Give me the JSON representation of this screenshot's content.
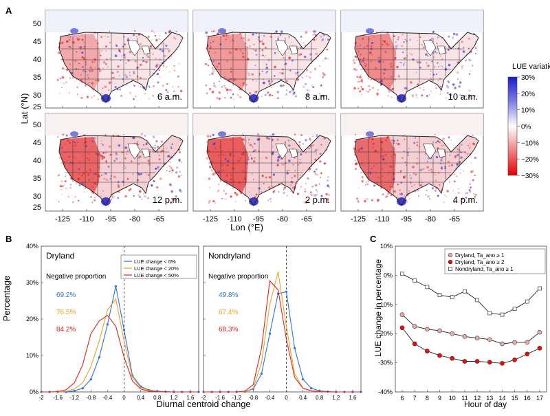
{
  "panels": {
    "a": "A",
    "b": "B",
    "c": "C"
  },
  "colors": {
    "neg": "#e0221c",
    "pos": "#2c2ccf",
    "blue": "#2f6fe0",
    "orange": "#f0a020",
    "red": "#e0221c",
    "circle_fill": "#e8aab0",
    "dot_fill": "#d01818"
  },
  "chart_data": [
    {
      "id": "A",
      "type": "map",
      "ylabel": "Lat (°N)",
      "xlabel": "Lon (°E)",
      "x_ticks": [
        "-125",
        "-110",
        "-95",
        "-80",
        "-65"
      ],
      "y_ticks": [
        "50",
        "45",
        "40",
        "35",
        "30",
        "25"
      ],
      "panels": [
        "6 a.m.",
        "8 a.m.",
        "10 a.m.",
        "12 p.m.",
        "2 p.m.",
        "4 p.m."
      ],
      "colorbar": {
        "title": "LUE variations",
        "ticks": [
          "30%",
          "20%",
          "10%",
          "0%",
          "−10%",
          "−20%",
          "−30%"
        ],
        "min": -30,
        "max": 30
      }
    },
    {
      "id": "B",
      "type": "line",
      "xlabel": "Diurnal centroid change",
      "ylabel": "Percentage",
      "xlim": [
        -2,
        1.8
      ],
      "ylim": [
        0,
        40
      ],
      "y_ticks": [
        "0%",
        "10%",
        "20%",
        "30%",
        "40%"
      ],
      "x_ticks": [
        "-2",
        "-1.6",
        "-1.2",
        "-0.8",
        "-0.4",
        "0",
        "0.4",
        "0.8",
        "1.2",
        "1.6"
      ],
      "x": [
        -2.0,
        -1.8,
        -1.6,
        -1.4,
        -1.2,
        -1.0,
        -0.8,
        -0.6,
        -0.4,
        -0.2,
        0.0,
        0.2,
        0.4,
        0.6,
        0.8,
        1.0,
        1.2,
        1.4,
        1.6,
        1.8
      ],
      "legend": [
        "LUE change < 0%",
        "LUE change < 20%",
        "LUE change < 50%"
      ],
      "neg_title": "Negative proportion",
      "subplots": [
        {
          "title": "Dryland",
          "neg_props": [
            "69.2%",
            "76.5%",
            "84.2%"
          ],
          "series": [
            {
              "name": "LUE change < 0%",
              "values": [
                0,
                0,
                0,
                0,
                0.3,
                1.0,
                3.5,
                9.5,
                18.5,
                29.0,
                17.0,
                4.5,
                1.5,
                0.5,
                0.2,
                0.1,
                0,
                0,
                0,
                0
              ]
            },
            {
              "name": "LUE change < 20%",
              "values": [
                0,
                0,
                0,
                0.2,
                0.8,
                2.5,
                7.0,
                14.0,
                22.5,
                25.5,
                14.0,
                4.0,
                1.2,
                0.4,
                0.1,
                0,
                0,
                0,
                0,
                0
              ]
            },
            {
              "name": "LUE change < 50%",
              "values": [
                0,
                0,
                0.1,
                0.6,
                2.5,
                7.5,
                16.0,
                19.5,
                21.0,
                18.0,
                9.5,
                3.0,
                0.8,
                0.2,
                0.1,
                0,
                0,
                0,
                0,
                0
              ]
            }
          ]
        },
        {
          "title": "Nondryland",
          "neg_props": [
            "49.8%",
            "67.4%",
            "68.3%"
          ],
          "series": [
            {
              "name": "LUE change < 0%",
              "values": [
                0,
                0,
                0,
                0,
                0,
                0.1,
                0.8,
                5.0,
                16.0,
                27.0,
                27.5,
                12.0,
                3.5,
                1.0,
                0.3,
                0.1,
                0,
                0,
                0,
                0
              ]
            },
            {
              "name": "LUE change < 20%",
              "values": [
                0,
                0,
                0,
                0,
                0,
                0.1,
                1.0,
                8.0,
                24.0,
                33.0,
                18.0,
                5.0,
                1.0,
                0.3,
                0.1,
                0,
                0,
                0,
                0,
                0
              ]
            },
            {
              "name": "LUE change < 50%",
              "values": [
                0,
                0,
                0,
                0,
                0,
                0.2,
                2.0,
                12.0,
                30.5,
                28.0,
                14.5,
                4.0,
                1.0,
                0.3,
                0.1,
                0,
                0,
                0,
                0,
                0
              ]
            }
          ]
        }
      ]
    },
    {
      "id": "C",
      "type": "line",
      "xlabel": "Hour of day",
      "ylabel": "LUE change in percentage",
      "ylim": [
        -40,
        10
      ],
      "y_ticks": [
        "10%",
        "0%",
        "-10%",
        "-20%",
        "-30%",
        "-40%"
      ],
      "categories": [
        6,
        7,
        8,
        9,
        10,
        11,
        12,
        13,
        14,
        15,
        16,
        17
      ],
      "series": [
        {
          "name": "Dryland, Ta_ano ≥ 1",
          "values": [
            -13.5,
            -17.5,
            -18.5,
            -19.0,
            -20.0,
            -21.0,
            -21.5,
            -22.0,
            -23.5,
            -23.0,
            -23.0,
            -19.5
          ]
        },
        {
          "name": "Dryland, Ta_ano ≥ 2",
          "values": [
            -18.0,
            -23.5,
            -26.0,
            -27.5,
            -28.5,
            -29.5,
            -29.5,
            -29.8,
            -30.2,
            -29.0,
            -27.0,
            -25.0
          ]
        },
        {
          "name": "Nondryland, Ta_ano ≥ 1",
          "values": [
            0.5,
            -1.8,
            -4.0,
            -6.8,
            -7.5,
            -5.5,
            -8.5,
            -13.0,
            -13.5,
            -11.5,
            -9.0,
            -4.5
          ]
        }
      ]
    }
  ]
}
